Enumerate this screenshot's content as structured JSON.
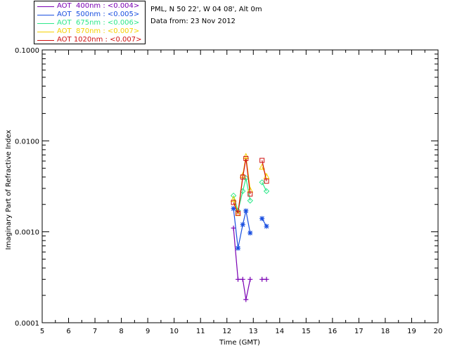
{
  "legend": [
    {
      "label": "AOT  400nm : <0.004>",
      "color": "#7a00b3"
    },
    {
      "label": "AOT  500nm : <0.005>",
      "color": "#1a4fe0"
    },
    {
      "label": "AOT  675nm : <0.006>",
      "color": "#2ee88a"
    },
    {
      "label": "AOT  870nm : <0.007>",
      "color": "#f5d000"
    },
    {
      "label": "AOT 1020nm : <0.007>",
      "color": "#d01010"
    }
  ],
  "info": {
    "site": "PML, N 50 22', W 04 08', Alt 0m",
    "date": "Data from: 23 Nov 2012"
  },
  "chart_data": {
    "type": "line",
    "title": "",
    "xlabel": "Time (GMT)",
    "ylabel": "Imaginary Part of Refractive Index",
    "xlim": [
      5,
      20
    ],
    "ylim": [
      0.0001,
      0.1
    ],
    "yscale": "log",
    "xticks": [
      "5",
      "6",
      "7",
      "8",
      "9",
      "10",
      "11",
      "12",
      "13",
      "14",
      "15",
      "16",
      "17",
      "18",
      "19",
      "20"
    ],
    "yticks": [
      "0.0001",
      "0.0010",
      "0.0100",
      "0.1000"
    ],
    "series": [
      {
        "name": "AOT 400nm",
        "color": "#7a00b3",
        "marker": "plus",
        "segments": [
          [
            [
              12.25,
              0.0011
            ],
            [
              12.42,
              0.0003
            ],
            [
              12.6,
              0.0003
            ],
            [
              12.72,
              0.00018
            ],
            [
              12.88,
              0.0003
            ]
          ],
          [
            [
              13.33,
              0.0003
            ],
            [
              13.5,
              0.0003
            ]
          ]
        ]
      },
      {
        "name": "AOT 500nm",
        "color": "#1a4fe0",
        "marker": "asterisk",
        "segments": [
          [
            [
              12.25,
              0.0018
            ],
            [
              12.42,
              0.00066
            ],
            [
              12.6,
              0.0012
            ],
            [
              12.72,
              0.0017
            ],
            [
              12.88,
              0.00097
            ]
          ],
          [
            [
              13.33,
              0.0014
            ],
            [
              13.5,
              0.00115
            ]
          ]
        ]
      },
      {
        "name": "AOT 675nm",
        "color": "#2ee88a",
        "marker": "diamond",
        "segments": [
          [
            [
              12.25,
              0.0025
            ],
            [
              12.42,
              0.0017
            ],
            [
              12.6,
              0.0028
            ],
            [
              12.72,
              0.0039
            ],
            [
              12.88,
              0.0022
            ]
          ],
          [
            [
              13.33,
              0.0035
            ],
            [
              13.5,
              0.0028
            ]
          ]
        ]
      },
      {
        "name": "AOT 870nm",
        "color": "#f5d000",
        "marker": "triangle",
        "segments": [
          [
            [
              12.25,
              0.0023
            ],
            [
              12.42,
              0.0016
            ],
            [
              12.6,
              0.0042
            ],
            [
              12.72,
              0.0068
            ],
            [
              12.88,
              0.0029
            ]
          ],
          [
            [
              13.33,
              0.0052
            ],
            [
              13.5,
              0.0041
            ]
          ]
        ]
      },
      {
        "name": "AOT 1020nm",
        "color": "#d01010",
        "marker": "square",
        "segments": [
          [
            [
              12.25,
              0.0021
            ],
            [
              12.42,
              0.0016
            ],
            [
              12.6,
              0.004
            ],
            [
              12.72,
              0.0064
            ],
            [
              12.88,
              0.0026
            ]
          ],
          [
            [
              13.33,
              0.0061
            ],
            [
              13.5,
              0.0036
            ]
          ]
        ]
      }
    ]
  }
}
